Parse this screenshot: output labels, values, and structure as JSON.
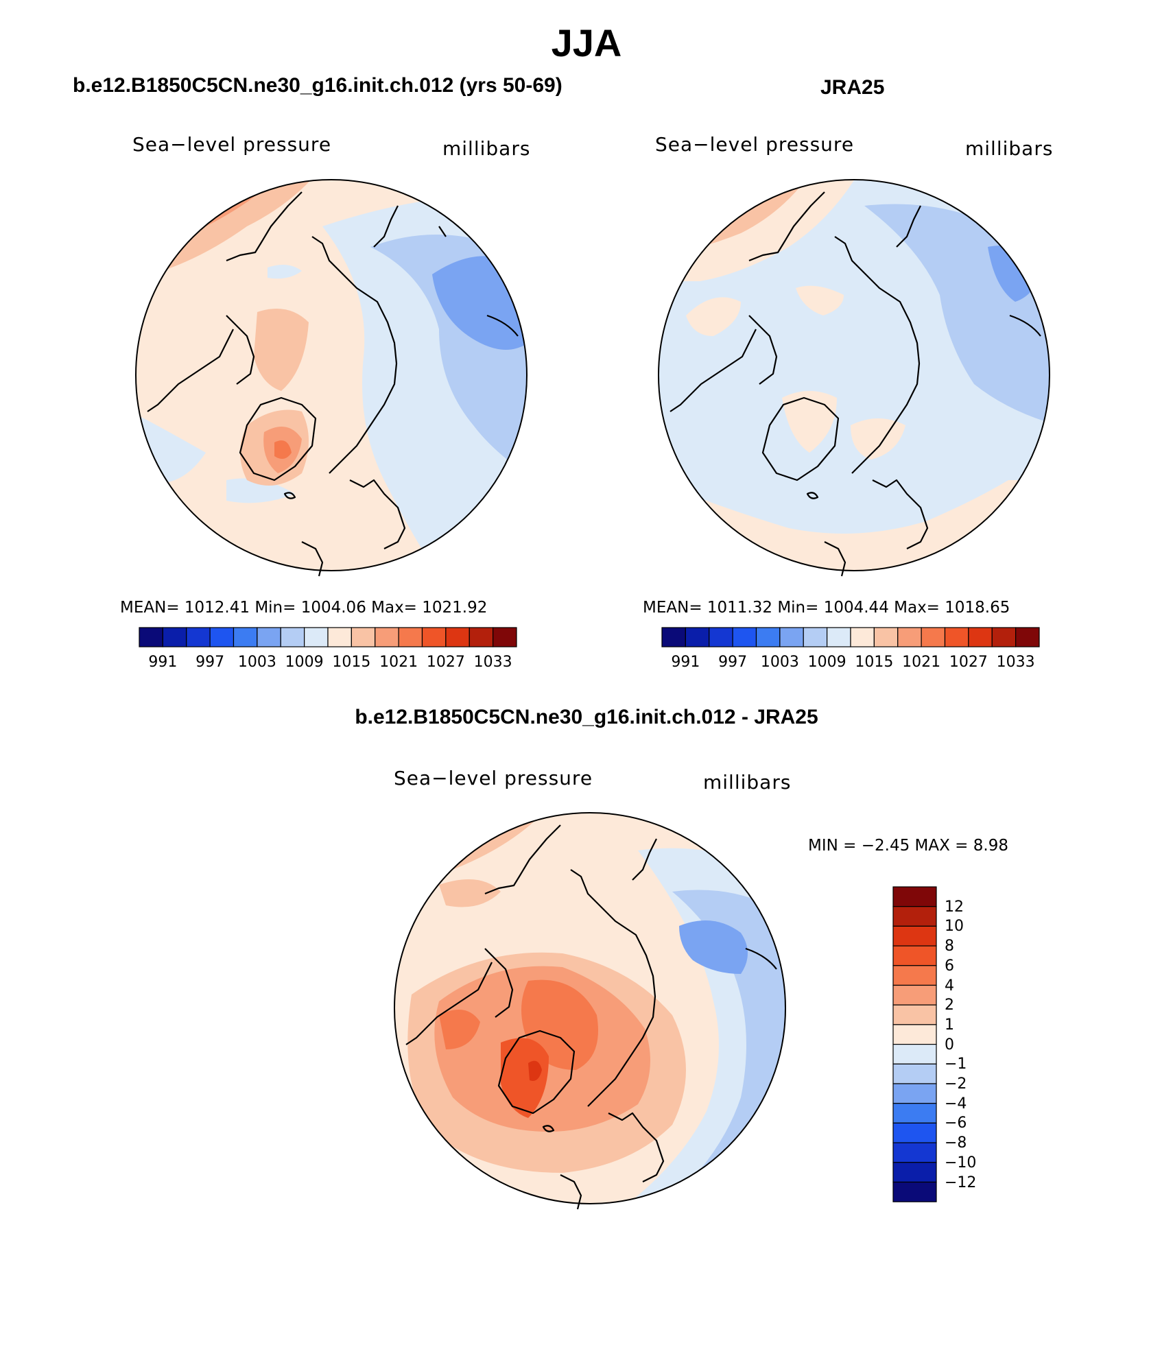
{
  "title": "JJA",
  "panels": [
    {
      "id": "model",
      "heading": "b.e12.B1850C5CN.ne30_g16.init.ch.012 (yrs 50-69)",
      "variable": "Sea−level pressure",
      "units": "millibars",
      "stats": "MEAN=  1012.41    Min=  1004.06    Max=  1021.92"
    },
    {
      "id": "obs",
      "heading": "JRA25",
      "variable": "Sea−level pressure",
      "units": "millibars",
      "stats": "MEAN=  1011.32    Min=  1004.44    Max=  1018.65"
    },
    {
      "id": "diff",
      "heading": "b.e12.B1850C5CN.ne30_g16.init.ch.012 - JRA25",
      "variable": "Sea−level pressure",
      "units": "millibars",
      "stats": "MIN =    −2.45  MAX =     8.98"
    }
  ],
  "abs_colorbar": {
    "labels": [
      "991",
      "997",
      "1003",
      "1009",
      "1015",
      "1021",
      "1027",
      "1033"
    ],
    "colors": [
      "#0a0a78",
      "#0a1eaa",
      "#1437d2",
      "#1e55f0",
      "#3c7cf2",
      "#7aa4f2",
      "#b4cdf4",
      "#dceaf8",
      "#fde9d9",
      "#f9c3a5",
      "#f79d78",
      "#f5794c",
      "#ef5528",
      "#dd3612",
      "#b3200c",
      "#7f0708"
    ]
  },
  "diff_colorbar": {
    "labels": [
      "12",
      "10",
      "8",
      "6",
      "4",
      "2",
      "1",
      "0",
      "−1",
      "−2",
      "−4",
      "−6",
      "−8",
      "−10",
      "−12"
    ],
    "colors": [
      "#7f0708",
      "#b3200c",
      "#dd3612",
      "#ef5528",
      "#f5794c",
      "#f79d78",
      "#f9c3a5",
      "#fde9d9",
      "#dceaf8",
      "#b4cdf4",
      "#7aa4f2",
      "#3c7cf2",
      "#1e55f0",
      "#1437d2",
      "#0a1eaa",
      "#0a0a78"
    ]
  }
}
